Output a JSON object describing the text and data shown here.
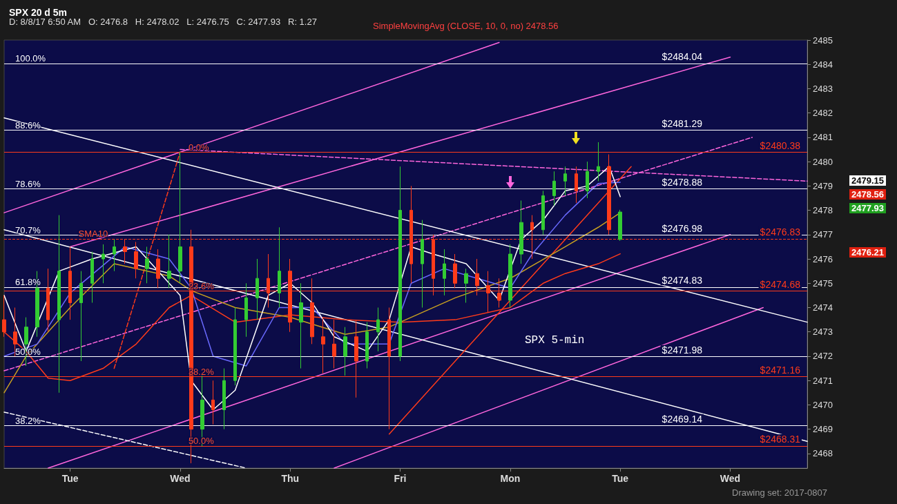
{
  "chart_data": {
    "type": "candlestick",
    "title": "SPX 20 d 5m",
    "subtitle": "D: 8/8/17 6:50 AM   O: 2476.8   H: 2478.02   L: 2476.75   C: 2477.93   R: 1.27",
    "categories": [
      null,
      null,
      null,
      null,
      null,
      null,
      "Tue",
      null,
      null,
      null,
      null,
      null,
      null,
      null,
      null,
      null,
      "Wed",
      null,
      null,
      null,
      null,
      null,
      null,
      null,
      null,
      null,
      "Thu",
      null,
      null,
      null,
      null,
      null,
      null,
      null,
      null,
      null,
      "Fri",
      null,
      null,
      null,
      null,
      null,
      null,
      null,
      null,
      null,
      "Mon",
      null,
      null,
      null,
      null,
      null,
      null,
      null,
      null,
      null,
      "Tue",
      null,
      null,
      null,
      null,
      null,
      null,
      null,
      null,
      null,
      "Wed",
      null,
      null,
      null,
      null,
      null,
      null,
      null
    ],
    "ylim": [
      2467.4,
      2485
    ],
    "yticks": [
      2468,
      2469,
      2470,
      2471,
      2472,
      2473,
      2474,
      2475,
      2476,
      2477,
      2478,
      2479,
      2480,
      2481,
      2482,
      2483,
      2484,
      2485
    ],
    "series": [
      {
        "type": "line",
        "color": "#ff66dd",
        "line_style": "solid",
        "values": [
          2477.9,
          null,
          null,
          null,
          null,
          null,
          null,
          null,
          null,
          null,
          null,
          null,
          null,
          null,
          null,
          null,
          null,
          null,
          null,
          null,
          null,
          null,
          null,
          null,
          null,
          null,
          null,
          null,
          null,
          null,
          null,
          null,
          null,
          null,
          null,
          null,
          null,
          null,
          null,
          null,
          null,
          null,
          null,
          null,
          null,
          2484.9,
          null,
          null,
          null,
          null,
          null,
          null,
          null,
          null,
          null,
          null,
          null,
          null,
          null,
          null,
          null,
          null,
          null,
          null,
          null,
          null,
          null,
          null,
          null,
          null,
          null,
          null,
          null,
          null
        ]
      },
      {
        "type": "line",
        "color": "#ff66dd",
        "line_style": "solid",
        "values": [
          null,
          null,
          null,
          null,
          null,
          null,
          null,
          null,
          null,
          null,
          null,
          null,
          null,
          null,
          null,
          null,
          null,
          null,
          null,
          null,
          null,
          null,
          null,
          null,
          null,
          null,
          null,
          null,
          null,
          null,
          2467.4,
          null,
          null,
          null,
          null,
          null,
          null,
          null,
          null,
          null,
          null,
          null,
          null,
          null,
          null,
          null,
          null,
          null,
          null,
          null,
          null,
          null,
          null,
          null,
          null,
          null,
          null,
          null,
          null,
          null,
          null,
          null,
          null,
          null,
          null,
          null,
          null,
          null,
          null,
          2474,
          null,
          null,
          null,
          null
        ]
      },
      {
        "type": "line",
        "color": "#ff66dd",
        "line_style": "dashed",
        "values": [
          2471.4,
          null,
          null,
          null,
          null,
          null,
          null,
          null,
          null,
          null,
          null,
          null,
          null,
          null,
          null,
          null,
          null,
          null,
          null,
          null,
          null,
          null,
          null,
          null,
          null,
          null,
          null,
          null,
          null,
          null,
          null,
          null,
          null,
          null,
          null,
          null,
          null,
          null,
          null,
          null,
          null,
          null,
          null,
          null,
          null,
          null,
          null,
          null,
          null,
          null,
          null,
          null,
          null,
          null,
          null,
          null,
          null,
          null,
          null,
          null,
          null,
          null,
          null,
          null,
          null,
          null,
          null,
          null,
          2481,
          null,
          null,
          null,
          null,
          null
        ]
      },
      {
        "type": "line",
        "color": "#ff66dd",
        "line_style": "solid",
        "values": [
          null,
          null,
          null,
          null,
          2467.4,
          null,
          null,
          null,
          null,
          null,
          null,
          null,
          null,
          null,
          null,
          null,
          null,
          null,
          null,
          null,
          null,
          null,
          null,
          null,
          null,
          null,
          null,
          null,
          null,
          null,
          null,
          null,
          null,
          null,
          null,
          null,
          null,
          null,
          null,
          null,
          null,
          null,
          null,
          null,
          null,
          null,
          null,
          null,
          null,
          null,
          null,
          null,
          null,
          null,
          null,
          null,
          null,
          null,
          null,
          null,
          null,
          null,
          null,
          null,
          null,
          null,
          2477,
          null,
          null,
          null,
          null,
          null,
          null,
          null
        ]
      },
      {
        "type": "line",
        "color": "#ff66dd",
        "line_style": "solid",
        "values": [
          null,
          null,
          null,
          null,
          null,
          null,
          2476.5,
          null,
          null,
          null,
          null,
          null,
          null,
          null,
          null,
          null,
          null,
          null,
          null,
          null,
          null,
          null,
          null,
          null,
          null,
          null,
          null,
          null,
          null,
          null,
          null,
          null,
          null,
          null,
          null,
          null,
          null,
          null,
          null,
          null,
          null,
          null,
          null,
          null,
          null,
          null,
          null,
          null,
          null,
          null,
          null,
          null,
          null,
          null,
          null,
          null,
          null,
          null,
          null,
          null,
          null,
          null,
          null,
          null,
          null,
          null,
          2484.3,
          null,
          null,
          null,
          null,
          null,
          null,
          null
        ]
      },
      {
        "type": "line",
        "color": "#ff66dd",
        "line_style": "dashed",
        "values": [
          null,
          null,
          null,
          null,
          null,
          null,
          null,
          null,
          null,
          null,
          null,
          null,
          null,
          null,
          null,
          null,
          2480.5,
          null,
          null,
          null,
          null,
          null,
          null,
          null,
          null,
          null,
          null,
          null,
          null,
          null,
          null,
          null,
          null,
          null,
          null,
          null,
          null,
          null,
          null,
          null,
          null,
          null,
          null,
          null,
          null,
          null,
          null,
          null,
          null,
          null,
          null,
          null,
          null,
          null,
          null,
          null,
          null,
          null,
          null,
          null,
          null,
          null,
          null,
          null,
          null,
          null,
          null,
          null,
          null,
          null,
          null,
          null,
          null,
          2479.2
        ]
      },
      {
        "type": "line",
        "color": "#ffffff",
        "line_style": "solid",
        "values": [
          2481.8,
          null,
          null,
          null,
          null,
          null,
          null,
          null,
          null,
          null,
          null,
          null,
          null,
          null,
          null,
          null,
          null,
          null,
          null,
          null,
          null,
          null,
          null,
          null,
          null,
          null,
          null,
          null,
          null,
          null,
          null,
          null,
          null,
          null,
          null,
          null,
          null,
          null,
          null,
          null,
          null,
          null,
          null,
          null,
          null,
          null,
          null,
          null,
          null,
          null,
          null,
          null,
          null,
          null,
          null,
          null,
          null,
          null,
          null,
          null,
          null,
          null,
          null,
          null,
          null,
          null,
          null,
          null,
          null,
          null,
          null,
          null,
          null,
          2473.4
        ]
      },
      {
        "type": "line",
        "color": "#ffffff",
        "line_style": "solid",
        "values": [
          2477.2,
          null,
          null,
          null,
          null,
          null,
          null,
          null,
          null,
          null,
          null,
          null,
          null,
          null,
          null,
          null,
          null,
          null,
          null,
          null,
          null,
          null,
          null,
          null,
          null,
          null,
          null,
          null,
          null,
          null,
          null,
          null,
          null,
          null,
          null,
          null,
          null,
          null,
          null,
          null,
          null,
          null,
          null,
          null,
          null,
          null,
          null,
          null,
          null,
          null,
          null,
          null,
          null,
          null,
          null,
          null,
          null,
          null,
          null,
          null,
          null,
          null,
          null,
          null,
          null,
          null,
          null,
          null,
          null,
          null,
          null,
          null,
          null,
          2468.5
        ]
      },
      {
        "type": "line",
        "color": "#ffffff",
        "line_style": "dashed",
        "values": [
          2469.7,
          null,
          null,
          null,
          null,
          null,
          null,
          null,
          null,
          null,
          null,
          null,
          null,
          null,
          null,
          null,
          null,
          null,
          null,
          null,
          null,
          null,
          2467.4,
          null,
          null,
          null,
          null,
          null,
          null,
          null,
          null,
          null,
          null,
          null,
          null,
          null,
          null,
          null,
          null,
          null,
          null,
          null,
          null,
          null,
          null,
          null,
          null,
          null,
          null,
          null,
          null,
          null,
          null,
          null,
          null,
          null,
          null,
          null,
          null,
          null,
          null,
          null,
          null,
          null,
          null,
          null,
          null,
          null,
          null,
          null,
          null,
          null,
          null,
          null
        ]
      },
      {
        "type": "line",
        "color": "#ff3b1a",
        "line_style": "dashed",
        "values": [
          null,
          null,
          null,
          null,
          null,
          null,
          null,
          null,
          null,
          null,
          2471.5,
          null,
          null,
          null,
          null,
          null,
          2480.4,
          null,
          null,
          null,
          null,
          null,
          null,
          null,
          null,
          null,
          null,
          null,
          null,
          null,
          null,
          null,
          null,
          null,
          null,
          null,
          null,
          null,
          null,
          null,
          null,
          null,
          null,
          null,
          null,
          null,
          null,
          null,
          null,
          null,
          null,
          null,
          null,
          null,
          null,
          null,
          null,
          null,
          null,
          null,
          null,
          null,
          null,
          null,
          null,
          null,
          null,
          null,
          null,
          null,
          null,
          null,
          null,
          null
        ]
      },
      {
        "type": "line",
        "color": "#ff3b1a",
        "line_style": "solid",
        "values": [
          null,
          null,
          null,
          null,
          null,
          null,
          null,
          null,
          null,
          null,
          null,
          null,
          null,
          null,
          null,
          null,
          null,
          null,
          null,
          null,
          null,
          null,
          null,
          null,
          null,
          null,
          null,
          null,
          null,
          null,
          null,
          null,
          null,
          null,
          null,
          2468.8,
          null,
          null,
          null,
          null,
          null,
          null,
          null,
          null,
          null,
          null,
          null,
          null,
          null,
          null,
          null,
          null,
          null,
          null,
          null,
          null,
          null,
          2479.8,
          null,
          null,
          null,
          null,
          null,
          null,
          null,
          null,
          null,
          null,
          null,
          null,
          null,
          null,
          null,
          null
        ]
      },
      {
        "type": "line",
        "color": "#ff3b1a",
        "line_style": "solid",
        "values": [
          2473,
          null,
          2472.2,
          null,
          2471.1,
          null,
          2471,
          null,
          null,
          2471.5,
          null,
          null,
          2472.5,
          null,
          null,
          2474,
          null,
          2474.5,
          null,
          null,
          null,
          2473.4,
          null,
          null,
          null,
          null,
          2473.7,
          null,
          null,
          null,
          null,
          2473.5,
          null,
          null,
          null,
          null,
          2473.4,
          null,
          null,
          null,
          null,
          2473.5,
          null,
          null,
          null,
          null,
          2474,
          null,
          null,
          2475,
          null,
          2475.4,
          null,
          null,
          2475.8,
          null,
          2476.21,
          null,
          null,
          null,
          null,
          null,
          null,
          null,
          null,
          null,
          null,
          null,
          null,
          null,
          null,
          null,
          null,
          null
        ]
      },
      {
        "type": "line",
        "color": "#c8a020",
        "line_style": "solid",
        "values": [
          2470.5,
          null,
          2472,
          null,
          null,
          null,
          2474,
          null,
          null,
          null,
          2475.8,
          null,
          null,
          null,
          null,
          2475.3,
          null,
          2474.7,
          null,
          null,
          null,
          2474,
          null,
          null,
          null,
          null,
          2473.6,
          null,
          null,
          null,
          null,
          2472.9,
          null,
          null,
          null,
          2473.2,
          null,
          2473.6,
          null,
          null,
          null,
          2474.4,
          null,
          null,
          null,
          null,
          2475.2,
          null,
          null,
          null,
          null,
          2476.5,
          null,
          null,
          2477.3,
          null,
          2477.9,
          null,
          null,
          null,
          null,
          null,
          null,
          null,
          null,
          null,
          null,
          null,
          null,
          null,
          null,
          null,
          null,
          null
        ]
      },
      {
        "type": "line",
        "color": "#6a6aff",
        "line_style": "solid",
        "values": [
          2472,
          null,
          null,
          2472.5,
          null,
          null,
          2474.6,
          null,
          null,
          null,
          null,
          2476.5,
          null,
          null,
          null,
          2476,
          null,
          2474.8,
          null,
          2472,
          null,
          null,
          2471.6,
          null,
          null,
          2474,
          null,
          null,
          2474,
          null,
          null,
          2472.5,
          null,
          null,
          null,
          2472.5,
          null,
          2475,
          null,
          null,
          2475.6,
          null,
          null,
          2475.2,
          null,
          null,
          2474.8,
          null,
          2476.2,
          null,
          null,
          2477.8,
          null,
          null,
          2479.1,
          null,
          2479.15,
          null,
          null,
          null,
          null,
          null,
          null,
          null,
          null,
          null,
          null,
          null,
          null,
          null,
          null,
          null,
          null,
          null
        ]
      },
      {
        "type": "line",
        "color": "#ffffff",
        "line_style": "solid",
        "values": [
          2474.5,
          null,
          2472.2,
          null,
          null,
          2475.5,
          null,
          null,
          2476,
          null,
          null,
          null,
          2476.5,
          null,
          null,
          2475,
          2474.5,
          2471,
          null,
          2469.8,
          null,
          2470.6,
          null,
          null,
          2474.5,
          null,
          2475,
          null,
          2474.2,
          null,
          2472.8,
          null,
          null,
          2472.2,
          null,
          2473.5,
          null,
          2476.5,
          null,
          2476.2,
          null,
          null,
          2475.8,
          null,
          null,
          2474.3,
          null,
          2476.8,
          null,
          2477.6,
          null,
          2478.8,
          null,
          2479,
          null,
          2479.8,
          2478.56,
          null,
          null,
          null,
          null,
          null,
          null,
          null,
          null,
          null,
          null,
          null,
          null,
          null,
          null,
          null,
          null,
          null
        ]
      },
      {
        "ohlc": [
          [
            2473.5,
            2474.5,
            2472.8,
            2473.0
          ],
          [
            2473.0,
            2474.0,
            2472.0,
            2472.5
          ],
          [
            2472.5,
            2473.6,
            2471.6,
            2473.2
          ],
          [
            2473.2,
            2475.5,
            2472.8,
            2474.8
          ],
          [
            2474.8,
            2475.6,
            2473.0,
            2473.5
          ],
          [
            2473.5,
            2477.8,
            2470.5,
            2475.5
          ],
          [
            2475.5,
            2476.5,
            2473.5,
            2474.2
          ],
          [
            2474.2,
            2475.5,
            2471.8,
            2475.0
          ],
          [
            2475.0,
            2476.3,
            2474.2,
            2476.0
          ],
          [
            2476.0,
            2476.6,
            2475.0,
            2476.2
          ],
          [
            2476.2,
            2476.8,
            2475.5,
            2476.5
          ],
          [
            2476.5,
            2476.8,
            2475.8,
            2476.3
          ],
          [
            2476.3,
            2476.7,
            2475.2,
            2475.6
          ],
          [
            2475.6,
            2476.5,
            2475.0,
            2476.0
          ],
          [
            2476.0,
            2476.4,
            2474.8,
            2475.2
          ],
          [
            2475.2,
            2477.0,
            2474.8,
            2475.5
          ],
          [
            2475.5,
            2480.4,
            2475.0,
            2476.5
          ],
          [
            2476.5,
            2477.2,
            2467.6,
            2469.0
          ],
          [
            2469.0,
            2471.2,
            2468.3,
            2470.2
          ],
          [
            2470.2,
            2471.0,
            2469.2,
            2469.8
          ],
          [
            2469.8,
            2471.5,
            2469.0,
            2471.0
          ],
          [
            2471.0,
            2474.0,
            2470.8,
            2473.5
          ],
          [
            2473.5,
            2475.0,
            2472.8,
            2474.4
          ],
          [
            2474.4,
            2476.0,
            2473.5,
            2475.2
          ],
          [
            2475.2,
            2476.2,
            2474.0,
            2474.6
          ],
          [
            2474.6,
            2477.3,
            2474.0,
            2475.5
          ],
          [
            2475.5,
            2476.0,
            2473.0,
            2473.4
          ],
          [
            2473.4,
            2475.0,
            2471.5,
            2474.2
          ],
          [
            2474.2,
            2475.2,
            2472.5,
            2472.8
          ],
          [
            2472.8,
            2473.6,
            2471.3,
            2472.5
          ],
          [
            2472.5,
            2473.5,
            2471.5,
            2472.0
          ],
          [
            2472.0,
            2473.2,
            2471.2,
            2472.8
          ],
          [
            2472.8,
            2473.5,
            2470.3,
            2471.8
          ],
          [
            2471.8,
            2473.4,
            2471.5,
            2473.0
          ],
          [
            2473.0,
            2474.0,
            2472.2,
            2473.5
          ],
          [
            2473.5,
            2474.0,
            2469.0,
            2472.0
          ],
          [
            2472.0,
            2479.8,
            2471.8,
            2478.0
          ],
          [
            2478.0,
            2479.0,
            2475.0,
            2475.8
          ],
          [
            2475.8,
            2477.6,
            2474.0,
            2476.8
          ],
          [
            2476.8,
            2477.0,
            2474.5,
            2475.2
          ],
          [
            2475.2,
            2476.4,
            2474.5,
            2475.8
          ],
          [
            2475.8,
            2476.2,
            2474.8,
            2475.0
          ],
          [
            2475.0,
            2475.6,
            2474.2,
            2475.4
          ],
          [
            2475.4,
            2476.0,
            2474.5,
            2474.9
          ],
          [
            2474.9,
            2475.5,
            2473.8,
            2474.6
          ],
          [
            2474.6,
            2475.2,
            2474.0,
            2474.3
          ],
          [
            2474.3,
            2476.6,
            2474.0,
            2476.2
          ],
          [
            2476.2,
            2478.4,
            2475.8,
            2477.5
          ],
          [
            2477.5,
            2477.8,
            2476.0,
            2477.2
          ],
          [
            2477.2,
            2478.8,
            2477.0,
            2478.6
          ],
          [
            2478.6,
            2479.6,
            2478.2,
            2479.2
          ],
          [
            2479.2,
            2479.8,
            2478.6,
            2479.5
          ],
          [
            2479.5,
            2479.8,
            2478.3,
            2478.8
          ],
          [
            2478.8,
            2480.0,
            2478.5,
            2479.6
          ],
          [
            2479.6,
            2480.8,
            2479.2,
            2479.8
          ],
          [
            2479.8,
            2480.3,
            2477.0,
            2477.2
          ],
          [
            2476.8,
            2478.02,
            2476.75,
            2477.93
          ],
          null,
          null,
          null,
          null,
          null,
          null,
          null,
          null,
          null,
          null,
          null,
          null,
          null,
          null,
          null,
          null,
          null
        ],
        "colors": [
          "#ff3b1a",
          "#ff3b1a",
          "#33cc33",
          "#33cc33",
          "#ff3b1a",
          "#33cc33",
          "#ff3b1a",
          "#33cc33",
          "#33cc33",
          "#33cc33",
          "#33cc33",
          "#ff3b1a",
          "#ff3b1a",
          "#33cc33",
          "#ff3b1a",
          "#33cc33",
          "#33cc33",
          "#ff3b1a",
          "#33cc33",
          "#ff3b1a",
          "#33cc33",
          "#33cc33",
          "#33cc33",
          "#33cc33",
          "#ff3b1a",
          "#33cc33",
          "#ff3b1a",
          "#33cc33",
          "#ff3b1a",
          "#ff3b1a",
          "#ff3b1a",
          "#33cc33",
          "#ff3b1a",
          "#33cc33",
          "#33cc33",
          "#ff3b1a",
          "#33cc33",
          "#ff3b1a",
          "#33cc33",
          "#ff3b1a",
          "#33cc33",
          "#ff3b1a",
          "#33cc33",
          "#ff3b1a",
          "#ff3b1a",
          "#ff3b1a",
          "#33cc33",
          "#33cc33",
          "#ff3b1a",
          "#33cc33",
          "#33cc33",
          "#33cc33",
          "#ff3b1a",
          "#33cc33",
          "#33cc33",
          "#ff3b1a",
          "#33cc33",
          null,
          null,
          null,
          null,
          null,
          null,
          null,
          null,
          null,
          null,
          null,
          null,
          null,
          null,
          null,
          null,
          null
        ]
      }
    ],
    "ref_lines": [
      {
        "axis": "y",
        "value": 2484.04,
        "label": "$2484.04",
        "color": "#ffffff",
        "line_style": "solid"
      },
      {
        "axis": "y",
        "value": 2481.29,
        "label": "$2481.29",
        "color": "#ffffff",
        "line_style": "solid"
      },
      {
        "axis": "y",
        "value": 2478.88,
        "label": "$2478.88",
        "color": "#ffffff",
        "line_style": "solid"
      },
      {
        "axis": "y",
        "value": 2476.98,
        "label": "$2476.98",
        "color": "#ffffff",
        "line_style": "solid"
      },
      {
        "axis": "y",
        "value": 2474.83,
        "label": "$2474.83",
        "color": "#ffffff",
        "line_style": "solid"
      },
      {
        "axis": "y",
        "value": 2471.98,
        "label": "$2471.98",
        "color": "#ffffff",
        "line_style": "solid"
      },
      {
        "axis": "y",
        "value": 2469.14,
        "label": "$2469.14",
        "color": "#ffffff",
        "line_style": "solid"
      },
      {
        "axis": "y",
        "value": 2480.38,
        "label": "$2480.38",
        "color": "#ff3b1a",
        "line_style": "solid"
      },
      {
        "axis": "y",
        "value": 2476.83,
        "label": "$2476.83",
        "color": "#ff3b1a",
        "line_style": "dashed"
      },
      {
        "axis": "y",
        "value": 2474.68,
        "label": "$2474.68",
        "color": "#ff3b1a",
        "line_style": "solid"
      },
      {
        "axis": "y",
        "value": 2471.16,
        "label": "$2471.16",
        "color": "#ff3b1a",
        "line_style": "solid"
      },
      {
        "axis": "y",
        "value": 2468.31,
        "label": "$2468.31",
        "color": "#ff3b1a",
        "line_style": "solid"
      }
    ],
    "annotations": [
      "SimpleMovingAvg (CLOSE, 10, 0, no)  2478.56",
      "SPX 5-min",
      "Drawing set: 2017-0807",
      "2479.15",
      "2478.56",
      "2477.93",
      "2476.21",
      {
        "text": "100.0%",
        "y": 2484.04
      },
      {
        "text": "88.6%",
        "y": 2481.29
      },
      {
        "text": "78.6%",
        "y": 2478.88
      },
      {
        "text": "70.7%",
        "y": 2476.98
      },
      {
        "text": "61.8%",
        "y": 2474.83
      },
      {
        "text": "50.0%",
        "y": 2471.98
      },
      {
        "text": "38.2%",
        "y": 2469.14
      },
      {
        "text": "SMA10",
        "x": "Tue",
        "y": 2476.83
      },
      {
        "text": "0.0%",
        "x": "Wed",
        "y": 2480.38
      },
      {
        "text": "23.6%",
        "x": "Wed",
        "y": 2474.68
      },
      {
        "text": "38.2%",
        "x": "Wed",
        "y": 2471.16
      },
      {
        "text": "50.0%",
        "x": "Wed",
        "y": 2468.31
      }
    ]
  }
}
